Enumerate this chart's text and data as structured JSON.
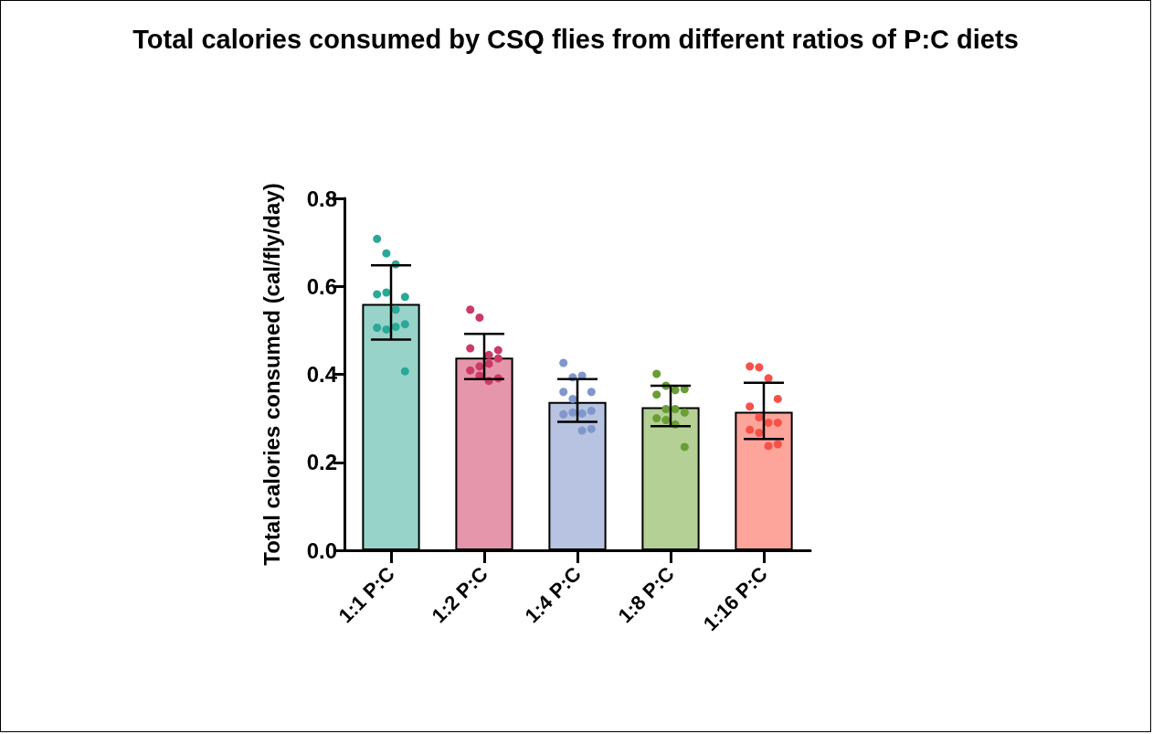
{
  "chart_data": {
    "type": "bar",
    "title": "Total calories consumed by CSQ flies from different ratios of P:C diets",
    "ylabel": "Total calories consumed (cal/fly/day)",
    "categories": [
      "1:1 P:C",
      "1:2 P:C",
      "1:4 P:C",
      "1:8 P:C",
      "1:16 P:C"
    ],
    "ylim": [
      0,
      0.8
    ],
    "yticks": [
      {
        "value": 0,
        "label": "0.0"
      },
      {
        "value": 0.2,
        "label": "0.2"
      },
      {
        "value": 0.4,
        "label": "0.4"
      },
      {
        "value": 0.6,
        "label": "0.6"
      },
      {
        "value": 0.8,
        "label": "0.8"
      }
    ],
    "grid": false,
    "series": [
      {
        "type": "bar",
        "values": [
          0.56,
          0.438,
          0.337,
          0.325,
          0.315
        ],
        "colors": [
          "#97d3c9",
          "#e596aa",
          "#b7c3e0",
          "#b4d095",
          "#fda59b"
        ],
        "errors": [
          [
            0.479,
            0.648
          ],
          [
            0.389,
            0.492
          ],
          [
            0.292,
            0.389
          ],
          [
            0.282,
            0.374
          ],
          [
            0.253,
            0.381
          ]
        ]
      },
      {
        "type": "scatter",
        "color": "#2aa898",
        "x": [
          "1:1 P:C",
          "1:1 P:C",
          "1:1 P:C",
          "1:1 P:C",
          "1:1 P:C",
          "1:1 P:C",
          "1:1 P:C",
          "1:1 P:C",
          "1:1 P:C",
          "1:1 P:C",
          "1:1 P:C",
          "1:1 P:C"
        ],
        "values": [
          0.708,
          0.675,
          0.65,
          0.576,
          0.582,
          0.586,
          0.547,
          0.514,
          0.506,
          0.502,
          0.508,
          0.407
        ]
      },
      {
        "type": "scatter",
        "color": "#cc3a66",
        "x": [
          "1:2 P:C",
          "1:2 P:C",
          "1:2 P:C",
          "1:2 P:C",
          "1:2 P:C",
          "1:2 P:C",
          "1:2 P:C",
          "1:2 P:C",
          "1:2 P:C",
          "1:2 P:C",
          "1:2 P:C",
          "1:2 P:C"
        ],
        "values": [
          0.547,
          0.529,
          0.444,
          0.455,
          0.459,
          0.418,
          0.424,
          0.436,
          0.409,
          0.397,
          0.385,
          0.391
        ]
      },
      {
        "type": "scatter",
        "color": "#7f97cc",
        "x": [
          "1:4 P:C",
          "1:4 P:C",
          "1:4 P:C",
          "1:4 P:C",
          "1:4 P:C",
          "1:4 P:C",
          "1:4 P:C",
          "1:4 P:C",
          "1:4 P:C",
          "1:4 P:C",
          "1:4 P:C",
          "1:4 P:C"
        ],
        "values": [
          0.426,
          0.393,
          0.397,
          0.36,
          0.36,
          0.344,
          0.311,
          0.317,
          0.309,
          0.313,
          0.272,
          0.276
        ]
      },
      {
        "type": "scatter",
        "color": "#6a9e35",
        "x": [
          "1:8 P:C",
          "1:8 P:C",
          "1:8 P:C",
          "1:8 P:C",
          "1:8 P:C",
          "1:8 P:C",
          "1:8 P:C",
          "1:8 P:C",
          "1:8 P:C",
          "1:8 P:C",
          "1:8 P:C",
          "1:8 P:C"
        ],
        "values": [
          0.401,
          0.374,
          0.364,
          0.366,
          0.354,
          0.321,
          0.321,
          0.313,
          0.3,
          0.296,
          0.286,
          0.235
        ]
      },
      {
        "type": "scatter",
        "color": "#f8514a",
        "x": [
          "1:16 P:C",
          "1:16 P:C",
          "1:16 P:C",
          "1:16 P:C",
          "1:16 P:C",
          "1:16 P:C",
          "1:16 P:C",
          "1:16 P:C",
          "1:16 P:C",
          "1:16 P:C",
          "1:16 P:C",
          "1:16 P:C"
        ],
        "values": [
          0.418,
          0.416,
          0.391,
          0.344,
          0.327,
          0.302,
          0.29,
          0.29,
          0.274,
          0.267,
          0.237,
          0.241
        ]
      }
    ],
    "marker": "circle"
  }
}
